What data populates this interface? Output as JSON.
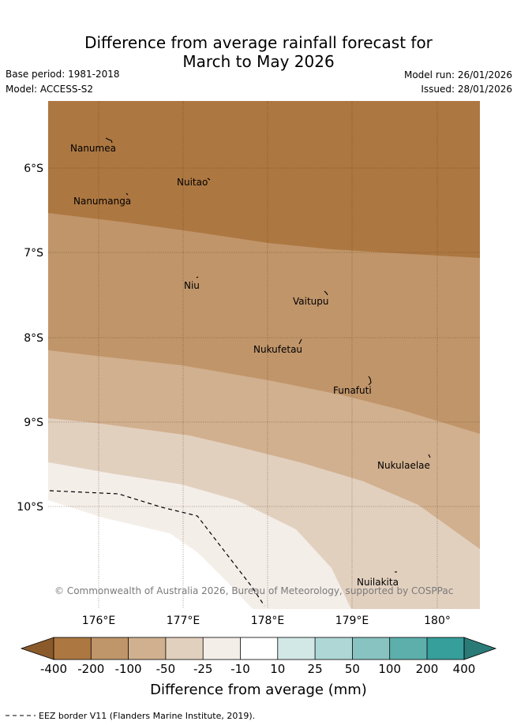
{
  "title": {
    "line1": "Difference from average rainfall forecast for",
    "line2": "March to May 2026"
  },
  "info": {
    "base_period": "Base period: 1981-2018",
    "model": "Model: ACCESS-S2",
    "model_run": "Model run: 26/01/2026",
    "issued": "Issued: 28/01/2026"
  },
  "map": {
    "lon_ticks": [
      "176°E",
      "177°E",
      "178°E",
      "179°E",
      "180°"
    ],
    "lat_ticks": [
      "6°S",
      "7°S",
      "8°S",
      "9°S",
      "10°S"
    ],
    "islands": [
      {
        "name": "Nanumea",
        "lon": 176.1,
        "lat": -5.67
      },
      {
        "name": "Nuitao",
        "lon": 177.3,
        "lat": -6.12
      },
      {
        "name": "Nanumanga",
        "lon": 176.32,
        "lat": -6.29
      },
      {
        "name": "Niu",
        "lon": 177.16,
        "lat": -7.29
      },
      {
        "name": "Vaitupu",
        "lon": 178.68,
        "lat": -7.48
      },
      {
        "name": "Nukufetau",
        "lon": 178.38,
        "lat": -8.03
      },
      {
        "name": "Funafuti",
        "lon": 179.2,
        "lat": -8.52
      },
      {
        "name": "Nukulaelae",
        "lon": 179.85,
        "lat": -9.38
      },
      {
        "name": "Nuilakita",
        "lon": 179.5,
        "lat": -10.78
      }
    ],
    "copyright": "© Commonwealth of Australia 2026, Bureau of Meteorology, supported by COSPPac",
    "eez_label": "EEZ border V11 (Flanders Marine Institute, 2019)."
  },
  "legend": {
    "ticks": [
      "-400",
      "-200",
      "-100",
      "-50",
      "-25",
      "-10",
      "10",
      "25",
      "50",
      "100",
      "200",
      "400"
    ],
    "colors": [
      "#8b5a2b",
      "#ac7741",
      "#bf956a",
      "#d0b08e",
      "#e2d0bf",
      "#f4eee9",
      "#ffffff",
      "#d2e8e6",
      "#aed7d5",
      "#88c3c1",
      "#5dafab",
      "#369e9b",
      "#2a7b78"
    ],
    "label": "Difference from average (mm)"
  }
}
